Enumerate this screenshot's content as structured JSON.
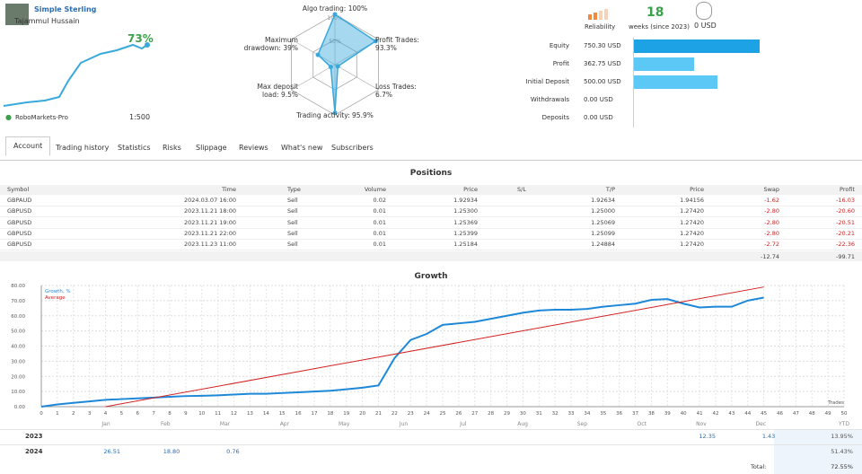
{
  "header": {
    "name": "Simple Sterling",
    "author": "Tajammul Hussain",
    "growth": "73%",
    "broker": "RoboMarkets-Pro",
    "leverage": "1:500"
  },
  "radar": {
    "ring_labels": [
      "100%",
      "50%"
    ],
    "axes": [
      {
        "label": "Algo trading: 100%",
        "value": 100
      },
      {
        "label": "Profit Trades: 93.3%",
        "value": 93.3
      },
      {
        "label": "Loss Trades: 6.7%",
        "value": 6.7
      },
      {
        "label": "Trading activity: 95.9%",
        "value": 95.9
      },
      {
        "label": "Max deposit load: 9.5%",
        "value": 9.5
      },
      {
        "label": "Maximum drawdown: 39%",
        "value": 39
      }
    ]
  },
  "stats": {
    "reliability": "Reliability",
    "weeks": "18",
    "weeks_label": "weeks (since 2023)",
    "funds": "0 USD"
  },
  "balance": [
    {
      "label": "Equity",
      "value": 750.3,
      "value_label": "750.30 USD"
    },
    {
      "label": "Profit",
      "value": 362.75,
      "value_label": "362.75 USD"
    },
    {
      "label": "Initial Deposit",
      "value": 500,
      "value_label": "500.00 USD"
    },
    {
      "label": "Withdrawals",
      "value": 0,
      "value_label": "0.00 USD"
    },
    {
      "label": "Deposits",
      "value": 0,
      "value_label": "0.00 USD"
    }
  ],
  "tabs": [
    "Account",
    "Trading history",
    "Statistics",
    "Risks",
    "Slippage",
    "Reviews",
    "What's new",
    "Subscribers"
  ],
  "positions": {
    "title": "Positions",
    "columns": [
      "Symbol",
      "Time",
      "Type",
      "Volume",
      "Price",
      "S/L",
      "T/P",
      "Price",
      "Swap",
      "Profit"
    ],
    "rows": [
      [
        "GBPAUD",
        "2024.03.07 16:00",
        "Sell",
        "0.02",
        "1.92934",
        null,
        "1.92634",
        "1.94156",
        "-1.62",
        "-16.03"
      ],
      [
        "GBPUSD",
        "2023.11.21 18:00",
        "Sell",
        "0.01",
        "1.25300",
        null,
        "1.25000",
        "1.27420",
        "-2.80",
        "-20.60"
      ],
      [
        "GBPUSD",
        "2023.11.21 19:00",
        "Sell",
        "0.01",
        "1.25369",
        null,
        "1.25069",
        "1.27420",
        "-2.80",
        "-20.51"
      ],
      [
        "GBPUSD",
        "2023.11.21 22:00",
        "Sell",
        "0.01",
        "1.25399",
        null,
        "1.25099",
        "1.27420",
        "-2.80",
        "-20.21"
      ],
      [
        "GBPUSD",
        "2023.11.23 11:00",
        "Sell",
        "0.01",
        "1.25184",
        null,
        "1.24884",
        "1.27420",
        "-2.72",
        "-22.36"
      ]
    ],
    "totals": [
      "-12.74",
      "-99.71"
    ]
  },
  "growth": {
    "type": "line",
    "title": "Growth",
    "x_label": "Trades",
    "xlim": [
      0,
      50
    ],
    "xticks": [
      0,
      1,
      2,
      3,
      4,
      5,
      6,
      7,
      8,
      9,
      10,
      11,
      12,
      13,
      14,
      15,
      16,
      17,
      18,
      19,
      20,
      21,
      22,
      23,
      24,
      25,
      26,
      27,
      28,
      29,
      30,
      31,
      32,
      33,
      34,
      35,
      36,
      37,
      38,
      39,
      40,
      41,
      42,
      43,
      44,
      45,
      46,
      47,
      48,
      49,
      50
    ],
    "ylim": [
      0,
      80
    ],
    "yticks": [
      {
        "value": 0,
        "label": "0.00"
      },
      {
        "value": 10,
        "label": "10.00"
      },
      {
        "value": 20,
        "label": "20.00"
      },
      {
        "value": 30,
        "label": "30.00"
      },
      {
        "value": 40,
        "label": "40.00"
      },
      {
        "value": 50,
        "label": "50.00"
      },
      {
        "value": 60,
        "label": "60.00"
      },
      {
        "value": 70,
        "label": "70.00"
      },
      {
        "value": 80,
        "label": "80.00"
      }
    ],
    "series": [
      {
        "name": "Growth, %",
        "color": "#1e88d8",
        "x": [
          0,
          1,
          2,
          3,
          4,
          5,
          6,
          7,
          8,
          9,
          10,
          11,
          12,
          13,
          14,
          15,
          16,
          17,
          18,
          19,
          20,
          21,
          22,
          23,
          24,
          25,
          26,
          27,
          28,
          29,
          30,
          31,
          32,
          33,
          34,
          35,
          36,
          37,
          38,
          39,
          40,
          41,
          42,
          43,
          44,
          45
        ],
        "values": [
          0,
          1.5,
          2.5,
          3.5,
          4.5,
          5,
          5.5,
          6,
          6.5,
          7,
          7.2,
          7.5,
          8,
          8.5,
          8.5,
          9,
          9.5,
          10,
          10.5,
          11.5,
          12.5,
          14,
          32,
          44,
          48,
          54,
          55,
          56,
          58,
          60,
          62,
          63.5,
          64,
          64,
          64.5,
          66,
          67,
          68,
          70.5,
          71,
          68,
          65.5,
          66,
          66,
          70,
          72
        ]
      },
      {
        "name": "Average",
        "color": "#d42020",
        "x": [
          4,
          45
        ],
        "values": [
          0,
          79
        ]
      }
    ]
  },
  "yearly": {
    "columns": [
      "Jan",
      "Feb",
      "Mar",
      "Apr",
      "May",
      "Jun",
      "Jul",
      "Aug",
      "Sep",
      "Oct",
      "Nov",
      "Dec",
      "YTD"
    ],
    "rows": [
      {
        "year": "2023",
        "values": [
          null,
          null,
          null,
          null,
          null,
          null,
          null,
          null,
          null,
          null,
          "12.35",
          "1.43",
          "13.95%"
        ]
      },
      {
        "year": "2024",
        "values": [
          "26.51",
          "18.80",
          "0.76",
          null,
          null,
          null,
          null,
          null,
          null,
          null,
          null,
          null,
          "51.43%"
        ]
      }
    ],
    "total_label": "Total:",
    "total": "72.55%"
  }
}
